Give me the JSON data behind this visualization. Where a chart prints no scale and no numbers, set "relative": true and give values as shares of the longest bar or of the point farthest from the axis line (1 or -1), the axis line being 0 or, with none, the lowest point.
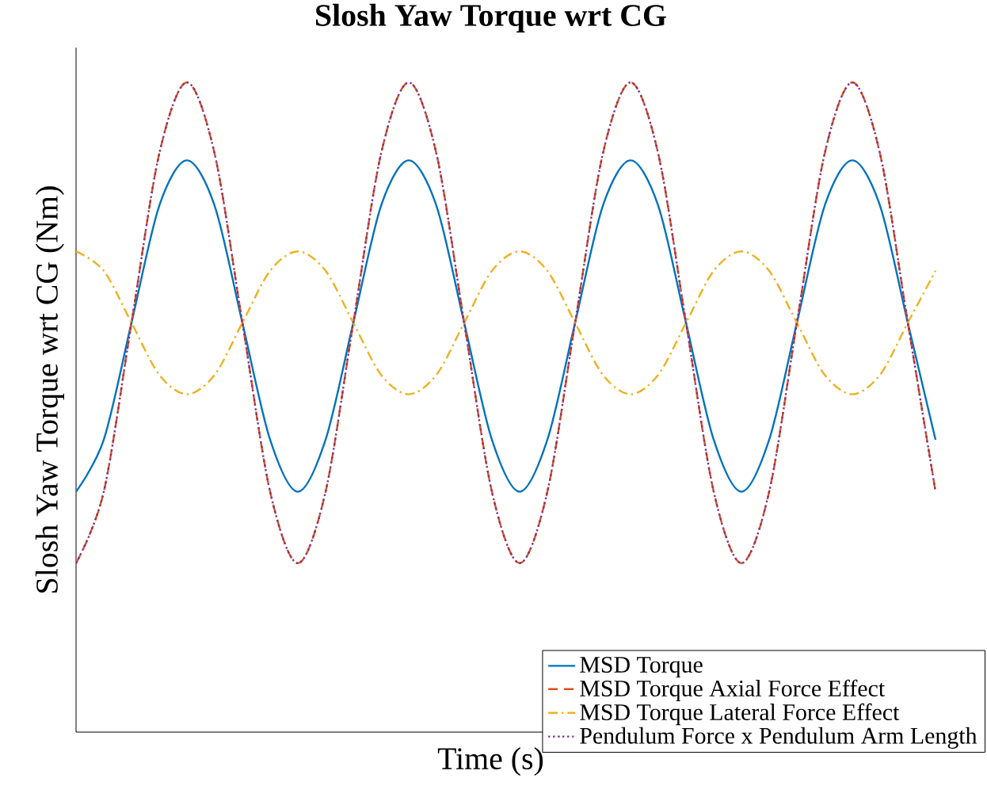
{
  "chart_data": {
    "type": "line",
    "title": "Slosh Yaw Torque wrt CG",
    "xlabel": "Time (s)",
    "ylabel": "Slosh Yaw Torque wrt CG (Nm)",
    "relative": true,
    "legend": "bottom right",
    "categories": [
      null,
      null,
      null,
      null,
      null,
      null,
      null,
      null,
      null,
      null,
      null,
      null,
      null,
      null,
      null,
      null,
      null,
      null,
      null,
      null,
      null,
      null,
      null,
      null,
      null,
      null,
      null,
      null,
      null,
      null,
      null,
      null
    ],
    "series": [
      {
        "name": "MSD Torque",
        "color": "#0072bd",
        "line_style": "solid",
        "values": [
          0.37,
          0.45,
          0.63,
          0.81,
          0.88,
          0.81,
          0.63,
          0.45,
          0.37,
          0.45,
          0.63,
          0.81,
          0.88,
          0.81,
          0.63,
          0.45,
          0.37,
          0.45,
          0.63,
          0.81,
          0.88,
          0.81,
          0.63,
          0.45,
          0.37,
          0.45,
          0.63,
          0.81,
          0.88,
          0.81,
          0.63,
          0.45
        ]
      },
      {
        "name": "MSD Torque Axial Force Effect",
        "color": "#d95319",
        "line_style": "dashed",
        "values": [
          0.26,
          0.37,
          0.63,
          0.89,
          1.0,
          0.89,
          0.63,
          0.37,
          0.26,
          0.37,
          0.63,
          0.89,
          1.0,
          0.89,
          0.63,
          0.37,
          0.26,
          0.37,
          0.63,
          0.89,
          1.0,
          0.89,
          0.63,
          0.37,
          0.26,
          0.37,
          0.63,
          0.89,
          1.0,
          0.89,
          0.63,
          0.37
        ]
      },
      {
        "name": "MSD Torque Lateral Force Effect",
        "color": "#edb120",
        "line_style": "dashdot",
        "values": [
          0.74,
          0.71,
          0.63,
          0.55,
          0.52,
          0.55,
          0.63,
          0.71,
          0.74,
          0.71,
          0.63,
          0.55,
          0.52,
          0.55,
          0.63,
          0.71,
          0.74,
          0.71,
          0.63,
          0.55,
          0.52,
          0.55,
          0.63,
          0.71,
          0.74,
          0.71,
          0.63,
          0.55,
          0.52,
          0.55,
          0.63,
          0.71
        ]
      },
      {
        "name": "Pendulum Force x Pendulum Arm Length",
        "color": "#7e2f8e",
        "line_style": "dotted",
        "values": [
          0.26,
          0.37,
          0.63,
          0.89,
          1.0,
          0.89,
          0.63,
          0.37,
          0.26,
          0.37,
          0.63,
          0.89,
          1.0,
          0.89,
          0.63,
          0.37,
          0.26,
          0.37,
          0.63,
          0.89,
          1.0,
          0.89,
          0.63,
          0.37,
          0.26,
          0.37,
          0.63,
          0.89,
          1.0,
          0.89,
          0.63,
          0.37
        ]
      }
    ]
  }
}
